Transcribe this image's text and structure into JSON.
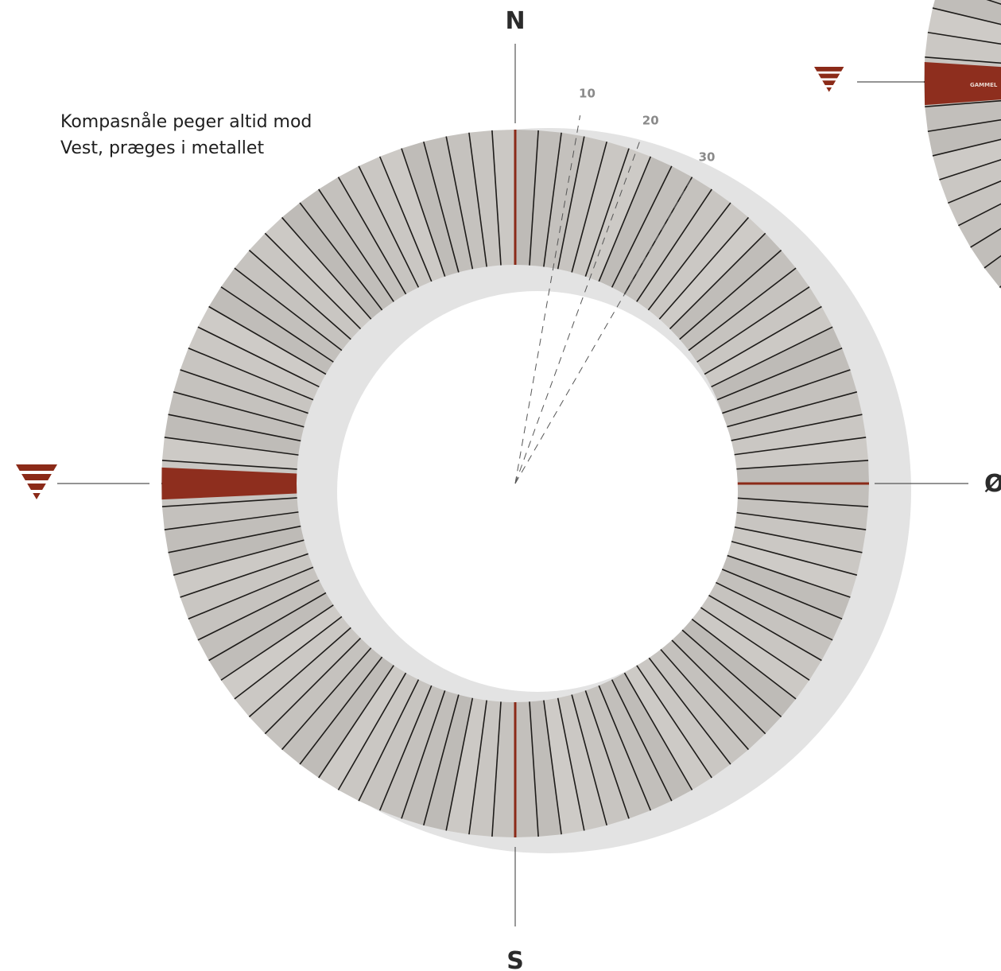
{
  "labels": {
    "north": "N",
    "south": "S",
    "east": "Ø"
  },
  "note": [
    "Kompasnåle peger altid mod",
    "Vest, præges i metallet"
  ],
  "degrees": [
    10,
    20,
    30
  ],
  "brand": "GAMMEL"
}
